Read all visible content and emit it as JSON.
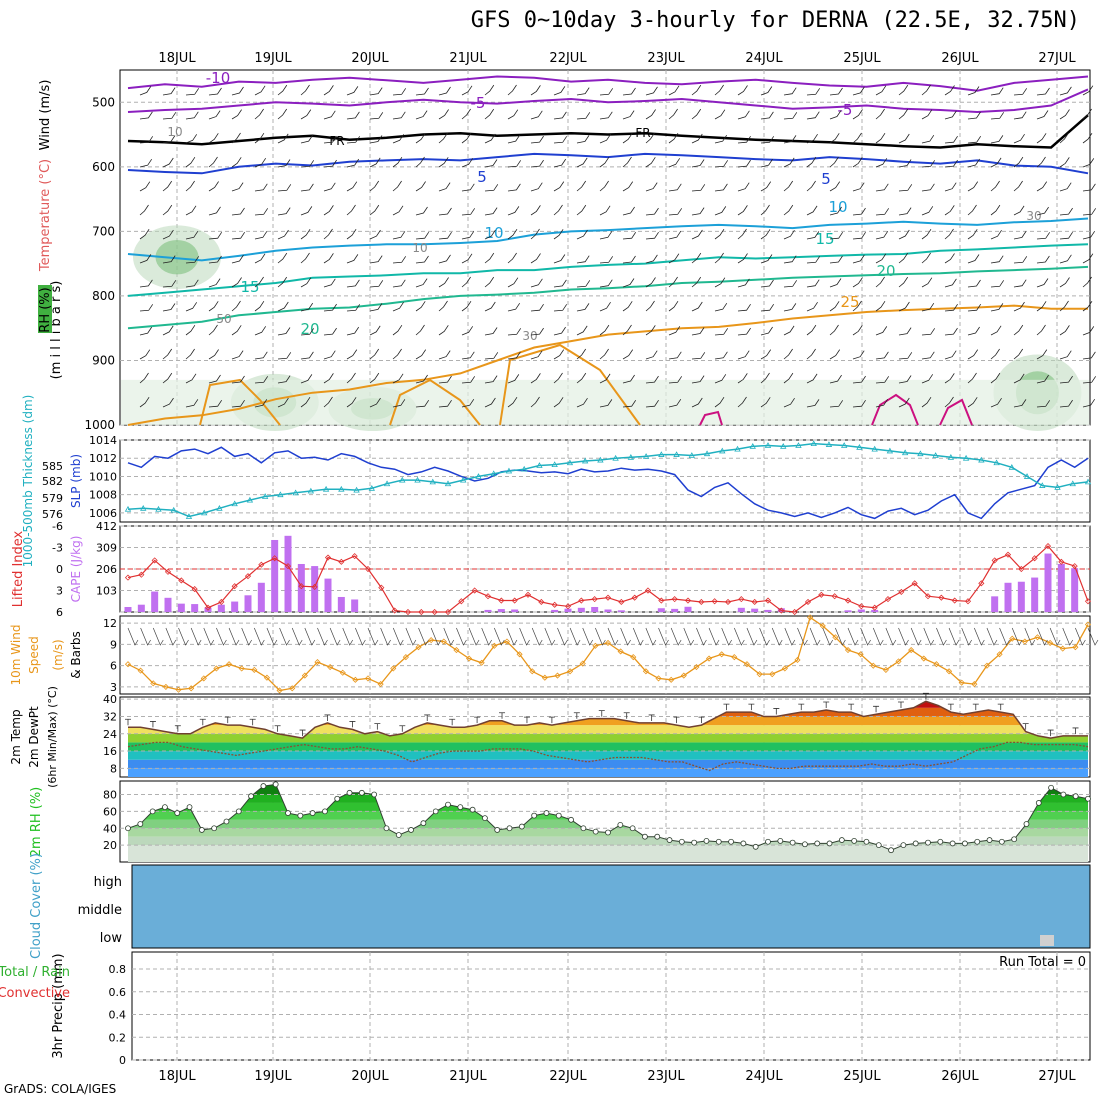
{
  "header": {
    "title": "GFS 0~10day 3-hourly for DERNA (22.5E, 32.75N)",
    "credit": "GrADS: COLA/IGES"
  },
  "dates": [
    "18JUL",
    "19JUL",
    "20JUL",
    "21JUL",
    "22JUL",
    "23JUL",
    "24JUL",
    "25JUL",
    "26JUL",
    "27JUL"
  ],
  "colors": {
    "purple": "#8b1fbf",
    "blue": "#1f3fd0",
    "cyan": "#1ca0d8",
    "teal": "#10b8a8",
    "green_c": "#20b890",
    "orange": "#e8961a",
    "magenta": "#cc1080",
    "slp": "#1f3fd0",
    "thick": "#20b0c0",
    "li": "#e03030",
    "cape": "#c070f0",
    "wind10": "#e8961a",
    "rh_green": "#20c020",
    "cloud_blue": "#6aaed8"
  },
  "chart_data": [
    {
      "type": "line",
      "panel": "vertical-profile",
      "ylabel_parts": [
        "RH (%)",
        "Temperature (°C)",
        "Wind (m/s)",
        "(m i l l i b a r s)"
      ],
      "y_ticks": [
        "500",
        "600",
        "700",
        "800",
        "900",
        "1000"
      ],
      "ylim": [
        1000,
        450
      ],
      "contour_labels": [
        "-10",
        "-5",
        "-5",
        "FR",
        "FR",
        "5",
        "5",
        "10",
        "10",
        "15",
        "15",
        "20",
        "20",
        "25",
        "30",
        "30",
        "10",
        "10",
        "50"
      ],
      "isotherms": [
        {
          "name": "-10",
          "p": [
            478,
            472,
            476,
            468,
            470,
            465,
            462,
            466,
            470,
            465,
            460,
            462,
            468,
            465,
            470,
            472,
            468,
            465,
            470,
            474,
            476,
            470,
            475,
            482,
            470,
            465,
            460
          ]
        },
        {
          "name": "-5",
          "p": [
            515,
            512,
            510,
            505,
            500,
            502,
            505,
            500,
            496,
            500,
            502,
            498,
            495,
            500,
            498,
            495,
            500,
            505,
            510,
            508,
            505,
            510,
            512,
            515,
            512,
            505,
            480
          ]
        },
        {
          "name": "FR",
          "p": [
            560,
            562,
            565,
            560,
            555,
            552,
            558,
            555,
            550,
            548,
            552,
            550,
            548,
            550,
            548,
            552,
            555,
            558,
            560,
            562,
            565,
            568,
            570,
            565,
            568,
            570,
            520
          ]
        },
        {
          "name": "5",
          "p": [
            605,
            608,
            610,
            600,
            595,
            598,
            592,
            590,
            588,
            590,
            585,
            580,
            582,
            585,
            580,
            582,
            585,
            588,
            590,
            585,
            588,
            592,
            595,
            590,
            598,
            600,
            610
          ]
        },
        {
          "name": "10",
          "p": [
            735,
            740,
            745,
            738,
            730,
            725,
            722,
            720,
            720,
            718,
            715,
            705,
            700,
            698,
            695,
            692,
            690,
            692,
            695,
            690,
            688,
            685,
            688,
            690,
            686,
            684,
            680
          ]
        },
        {
          "name": "15",
          "p": [
            800,
            795,
            790,
            785,
            780,
            772,
            770,
            768,
            765,
            765,
            760,
            760,
            755,
            752,
            750,
            745,
            740,
            742,
            740,
            738,
            736,
            735,
            730,
            728,
            725,
            722,
            720
          ]
        },
        {
          "name": "20",
          "p": [
            850,
            845,
            840,
            830,
            825,
            820,
            818,
            812,
            805,
            800,
            798,
            795,
            790,
            788,
            785,
            780,
            778,
            775,
            772,
            770,
            768,
            766,
            765,
            762,
            760,
            758,
            755
          ]
        },
        {
          "name": "25",
          "p": [
            1000,
            990,
            985,
            975,
            960,
            950,
            945,
            935,
            930,
            920,
            900,
            880,
            870,
            860,
            855,
            850,
            848,
            842,
            835,
            830,
            825,
            822,
            820,
            818,
            815,
            820,
            820
          ]
        }
      ],
      "rh_shade_bands": [
        {
          "x": 0.5,
          "p": [
            700,
            780
          ]
        },
        {
          "x": 1.5,
          "p": [
            930,
            1000
          ]
        },
        {
          "x": 2.5,
          "p": [
            950,
            1000
          ]
        },
        {
          "x": 9.3,
          "p": [
            900,
            1000
          ]
        }
      ]
    },
    {
      "type": "line",
      "panel": "slp-thickness",
      "ylabel_left": "1000-500mb Thickness (dm)",
      "ylabel_right": "SLP (mb)",
      "y_ticks_left": [
        "576",
        "579",
        "582",
        "585"
      ],
      "y_ticks_right": [
        "1006",
        "1008",
        "1010",
        "1012",
        "1014"
      ],
      "ylim_right": [
        1005,
        1014
      ],
      "series": [
        {
          "name": "SLP (mb)",
          "values": [
            1011.5,
            1011.0,
            1012.2,
            1012.0,
            1012.8,
            1013.0,
            1012.5,
            1013.2,
            1012.2,
            1012.5,
            1011.5,
            1012.6,
            1012.8,
            1012.0,
            1012.1,
            1011.8,
            1012.5,
            1012.2,
            1011.5,
            1011.0,
            1010.8,
            1010.2,
            1010.5,
            1011.0,
            1010.6,
            1010.0,
            1009.5,
            1009.8,
            1010.5,
            1010.7,
            1010.6,
            1010.4,
            1010.5,
            1010.3,
            1010.8,
            1010.5,
            1010.6,
            1010.9,
            1010.7,
            1010.8,
            1010.6,
            1010.2,
            1008.5,
            1007.8,
            1008.8,
            1009.3,
            1008.1,
            1007.0,
            1006.3,
            1006.0,
            1005.6,
            1006.0,
            1005.5,
            1006.0,
            1006.6,
            1005.8,
            1005.4,
            1006.2,
            1006.5,
            1005.8,
            1006.3,
            1007.3,
            1008.0,
            1006.0,
            1005.4,
            1007.0,
            1008.2,
            1008.6,
            1009.0,
            1011.0,
            1011.8,
            1011.0,
            1012.0
          ]
        },
        {
          "name": "Thickness (dm)",
          "values": [
            1006.4,
            1006.5,
            1006.4,
            1006.3,
            1005.6,
            1006.0,
            1006.5,
            1007.0,
            1007.4,
            1007.8,
            1008.0,
            1008.2,
            1008.4,
            1008.6,
            1008.6,
            1008.5,
            1008.7,
            1009.2,
            1009.6,
            1009.6,
            1009.4,
            1009.2,
            1009.6,
            1010.0,
            1010.3,
            1010.6,
            1010.8,
            1011.2,
            1011.3,
            1011.5,
            1011.7,
            1011.8,
            1012.0,
            1012.1,
            1012.2,
            1012.4,
            1012.4,
            1012.3,
            1012.5,
            1012.8,
            1013.0,
            1013.3,
            1013.4,
            1013.3,
            1013.4,
            1013.6,
            1013.5,
            1013.4,
            1013.2,
            1013.0,
            1012.8,
            1012.6,
            1012.5,
            1012.3,
            1012.1,
            1012.0,
            1011.8,
            1011.5,
            1011.0,
            1010.0,
            1009.0,
            1008.8,
            1009.2,
            1009.4
          ]
        }
      ]
    },
    {
      "type": "bar",
      "panel": "lifted-index-cape",
      "ylabel_left": "Lifted Index",
      "ylabel_right": "CAPE (J/kg)",
      "y_ticks_left": [
        "-6",
        "-3",
        "0",
        "3",
        "6"
      ],
      "y_ticks_right": [
        "103",
        "206",
        "309",
        "412"
      ],
      "ylim_right": [
        0,
        412
      ],
      "cape": [
        24,
        35,
        98,
        68,
        40,
        38,
        22,
        35,
        50,
        80,
        140,
        345,
        365,
        230,
        220,
        160,
        72,
        60,
        0,
        0,
        0,
        0,
        0,
        0,
        0,
        0,
        0,
        10,
        14,
        12,
        0,
        0,
        10,
        16,
        20,
        24,
        12,
        8,
        0,
        0,
        18,
        15,
        25,
        0,
        0,
        0,
        20,
        16,
        10,
        18,
        0,
        0,
        0,
        0,
        8,
        12,
        10,
        0,
        0,
        0,
        0,
        0,
        0,
        0,
        0,
        75,
        140,
        145,
        165,
        280,
        230,
        210,
        0
      ],
      "lifted_index": [
        1.2,
        0.8,
        -1.2,
        0.4,
        1.6,
        2.8,
        5.4,
        4.6,
        2.4,
        1.0,
        -0.6,
        -1.5,
        -0.4,
        2.4,
        2.5,
        -1.6,
        -1.0,
        -1.8,
        0.0,
        2.6,
        5.8,
        6.0,
        6.0,
        6.0,
        6.0,
        4.5,
        3.0,
        3.8,
        4.4,
        4.4,
        3.6,
        4.6,
        5.0,
        5.2,
        4.4,
        4.2,
        4.0,
        4.6,
        4.0,
        3.0,
        4.4,
        4.2,
        4.4,
        4.6,
        4.5,
        4.6,
        4.2,
        4.6,
        4.4,
        5.8,
        6.0,
        4.6,
        3.6,
        3.8,
        4.4,
        5.2,
        5.4,
        4.2,
        3.2,
        2.0,
        3.8,
        4.0,
        4.4,
        4.5,
        2.0,
        -1.2,
        -2.0,
        0.0,
        -1.5,
        -3.2,
        -1.0,
        -0.4,
        4.5
      ],
      "reference_line": 0
    },
    {
      "type": "line",
      "panel": "10m-wind",
      "ylabel": "10m Wind Speed (m/s) & Barbs",
      "ylabel_parts": [
        "10m Wind",
        "Speed",
        "(m/s)",
        "& Barbs"
      ],
      "y_ticks": [
        "3",
        "6",
        "9",
        "12"
      ],
      "ylim": [
        2,
        13
      ],
      "series": [
        {
          "name": "10m Wind",
          "values": [
            6.2,
            5.3,
            3.5,
            3.0,
            2.6,
            2.8,
            4.2,
            5.6,
            6.2,
            5.6,
            5.4,
            4.3,
            2.5,
            2.8,
            4.6,
            6.5,
            5.8,
            5.0,
            4.0,
            4.2,
            3.4,
            5.6,
            7.2,
            8.6,
            9.6,
            9.4,
            8.2,
            7.0,
            6.4,
            8.8,
            9.4,
            7.6,
            5.2,
            4.3,
            4.6,
            5.2,
            6.3,
            8.8,
            9.2,
            8.0,
            7.2,
            5.2,
            4.2,
            4.0,
            4.6,
            5.8,
            7.0,
            7.6,
            7.2,
            6.2,
            4.8,
            4.8,
            5.6,
            6.8,
            12.8,
            11.6,
            10.0,
            8.2,
            7.6,
            6.0,
            5.4,
            6.6,
            8.2,
            7.0,
            6.2,
            5.2,
            3.6,
            3.4,
            6.0,
            7.6,
            9.8,
            9.4,
            10.0,
            9.2,
            8.4,
            8.6,
            11.8
          ]
        }
      ]
    },
    {
      "type": "area",
      "panel": "2m-temp-dewpt",
      "ylabel_parts": [
        "2m Temp",
        "2m DewPt",
        "(6hr Min/Max) (°C)"
      ],
      "y_ticks": [
        "8",
        "16",
        "24",
        "32",
        "40"
      ],
      "ylim": [
        4,
        41
      ],
      "series": [
        {
          "name": "2m Temp",
          "values": [
            27,
            27,
            26,
            25,
            24,
            24,
            27,
            29,
            28,
            28,
            27,
            26,
            24,
            23,
            22,
            27,
            29,
            27,
            26,
            24,
            25,
            23,
            24,
            27,
            29,
            28,
            27,
            27,
            28,
            30,
            30,
            28,
            28,
            29,
            28,
            29,
            30,
            31,
            31,
            31,
            30,
            29,
            29,
            29,
            28,
            27,
            28,
            31,
            34,
            34,
            34,
            32,
            32,
            33,
            34,
            34,
            35,
            34,
            34,
            32,
            33,
            34,
            35,
            36,
            39,
            37,
            34,
            33,
            34,
            35,
            34,
            33,
            25,
            23,
            22,
            23,
            23,
            23
          ]
        },
        {
          "name": "2m DewPt",
          "values": [
            18,
            19,
            20,
            20,
            18,
            17,
            16,
            15,
            14,
            15,
            16,
            17,
            18,
            19,
            18,
            17,
            17,
            18,
            17,
            16,
            14,
            11,
            13,
            15,
            16,
            16,
            16,
            17,
            17,
            17,
            16,
            14,
            13,
            12,
            11,
            12,
            13,
            13,
            13,
            12,
            11,
            11,
            9,
            7,
            10,
            11,
            10,
            9,
            8,
            8,
            9,
            9,
            9,
            9,
            9,
            10,
            9,
            9,
            10,
            9,
            10,
            11,
            14,
            17,
            18,
            20,
            20,
            19,
            19,
            19,
            19,
            18
          ]
        }
      ]
    },
    {
      "type": "area",
      "panel": "2m-rh",
      "ylabel": "2m RH (%)",
      "y_ticks": [
        "20",
        "40",
        "60",
        "80"
      ],
      "ylim": [
        0,
        96
      ],
      "series": [
        {
          "name": "2m RH",
          "values": [
            40,
            45,
            60,
            65,
            58,
            65,
            38,
            40,
            48,
            60,
            78,
            90,
            92,
            58,
            55,
            58,
            60,
            75,
            82,
            82,
            80,
            40,
            32,
            38,
            46,
            60,
            68,
            65,
            62,
            52,
            38,
            40,
            42,
            55,
            58,
            55,
            50,
            40,
            36,
            35,
            44,
            40,
            30,
            30,
            26,
            24,
            23,
            25,
            24,
            24,
            22,
            18,
            24,
            25,
            23,
            21,
            22,
            22,
            26,
            25,
            24,
            20,
            14,
            20,
            22,
            23,
            24,
            22,
            22,
            24,
            26,
            24,
            27,
            45,
            70,
            88,
            80,
            78,
            75
          ]
        }
      ]
    },
    {
      "type": "area",
      "panel": "cloud-cover",
      "ylabel": "Cloud Cover (%)",
      "y_ticks": [
        "low",
        "middle",
        "high"
      ]
    },
    {
      "type": "bar",
      "panel": "precip",
      "ylabel_parts": [
        "3hr Precip (mm)",
        "Total / Rain",
        "Convective"
      ],
      "y_ticks": [
        "0",
        "0.2",
        "0.4",
        "0.6",
        "0.8"
      ],
      "ylim": [
        0,
        0.95
      ],
      "run_total_label": "Run Total = 0",
      "values": []
    }
  ]
}
